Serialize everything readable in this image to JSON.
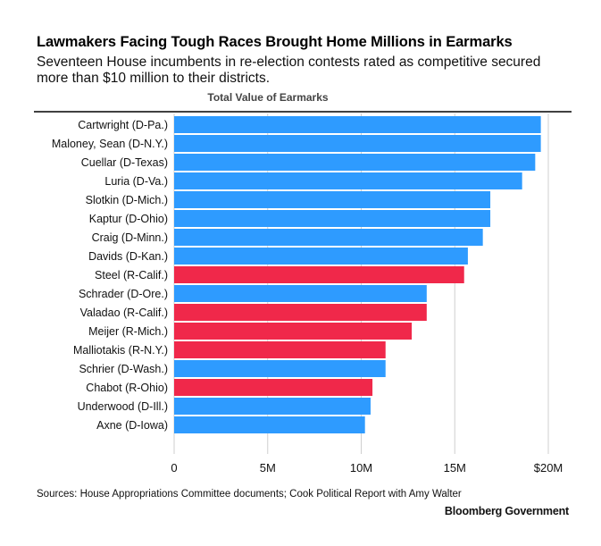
{
  "title": "Lawmakers Facing Tough Races Brought Home Millions in Earmarks",
  "subtitle": "Seventeen House incumbents in re-election contests rated as competitive secured more than $10 million to their districts.",
  "source": "Sources: House Appropriations Committee documents; Cook Political Report with Amy Walter",
  "brand": "Bloomberg Government",
  "colors": {
    "democrat": "#2e9bff",
    "republican": "#f0284a"
  },
  "chart_data": {
    "type": "bar",
    "orientation": "horizontal",
    "title": "Total Value of Earmarks",
    "categories": [
      "Cartwright (D-Pa.)",
      "Maloney, Sean (D-N.Y.)",
      "Cuellar (D-Texas)",
      "Luria (D-Va.)",
      "Slotkin (D-Mich.)",
      "Kaptur (D-Ohio)",
      "Craig (D-Minn.)",
      "Davids (D-Kan.)",
      "Steel (R-Calif.)",
      "Schrader (D-Ore.)",
      "Valadao (R-Calif.)",
      "Meijer (R-Mich.)",
      "Malliotakis (R-N.Y.)",
      "Schrier (D-Wash.)",
      "Chabot (R-Ohio)",
      "Underwood (D-Ill.)",
      "Axne (D-Iowa)"
    ],
    "values": [
      19.6,
      19.6,
      19.3,
      18.6,
      16.9,
      16.9,
      16.5,
      15.7,
      15.5,
      13.5,
      13.5,
      12.7,
      11.3,
      11.3,
      10.6,
      10.5,
      10.2
    ],
    "party": [
      "D",
      "D",
      "D",
      "D",
      "D",
      "D",
      "D",
      "D",
      "R",
      "D",
      "R",
      "R",
      "R",
      "D",
      "R",
      "D",
      "D"
    ],
    "xlim": [
      0,
      20
    ],
    "tick_values": [
      0,
      5,
      10,
      15,
      20
    ],
    "tick_labels": [
      "0",
      "5M",
      "10M",
      "15M",
      "$20M"
    ]
  }
}
